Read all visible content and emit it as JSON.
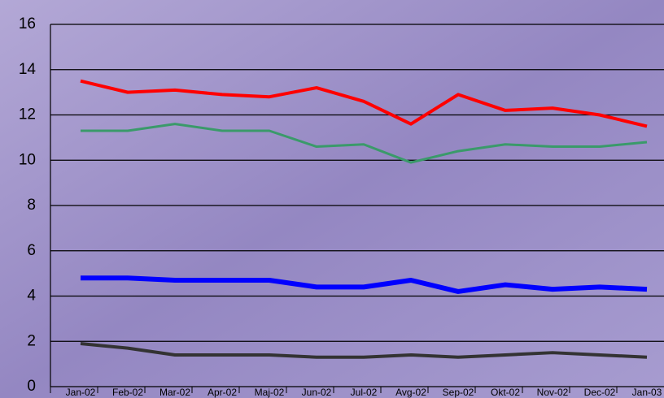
{
  "chart_data": {
    "type": "line",
    "categories": [
      "Jan-02",
      "Feb-02",
      "Mar-02",
      "Apr-02",
      "Maj-02",
      "Jun-02",
      "Jul-02",
      "Avg-02",
      "Sep-02",
      "Okt-02",
      "Nov-02",
      "Dec-02",
      "Jan-03"
    ],
    "series": [
      {
        "color": "#ff0000",
        "values": [
          13.5,
          13.0,
          13.1,
          12.9,
          12.8,
          13.2,
          12.6,
          11.6,
          12.9,
          12.2,
          12.3,
          12.0,
          11.5
        ]
      },
      {
        "color": "#3a9a6a",
        "values": [
          11.3,
          11.3,
          11.6,
          11.3,
          11.3,
          10.6,
          10.7,
          9.9,
          10.4,
          10.7,
          10.6,
          10.6,
          10.8
        ]
      },
      {
        "color": "#0000ff",
        "values": [
          4.8,
          4.8,
          4.7,
          4.7,
          4.7,
          4.4,
          4.4,
          4.7,
          4.2,
          4.5,
          4.3,
          4.4,
          4.3
        ]
      },
      {
        "color": "#333333",
        "values": [
          1.9,
          1.7,
          1.4,
          1.4,
          1.4,
          1.3,
          1.3,
          1.4,
          1.3,
          1.4,
          1.5,
          1.4,
          1.3
        ]
      }
    ],
    "ylim": [
      0,
      16
    ],
    "yticks": [
      0,
      2,
      4,
      6,
      8,
      10,
      12,
      14,
      16
    ],
    "grid": true
  }
}
